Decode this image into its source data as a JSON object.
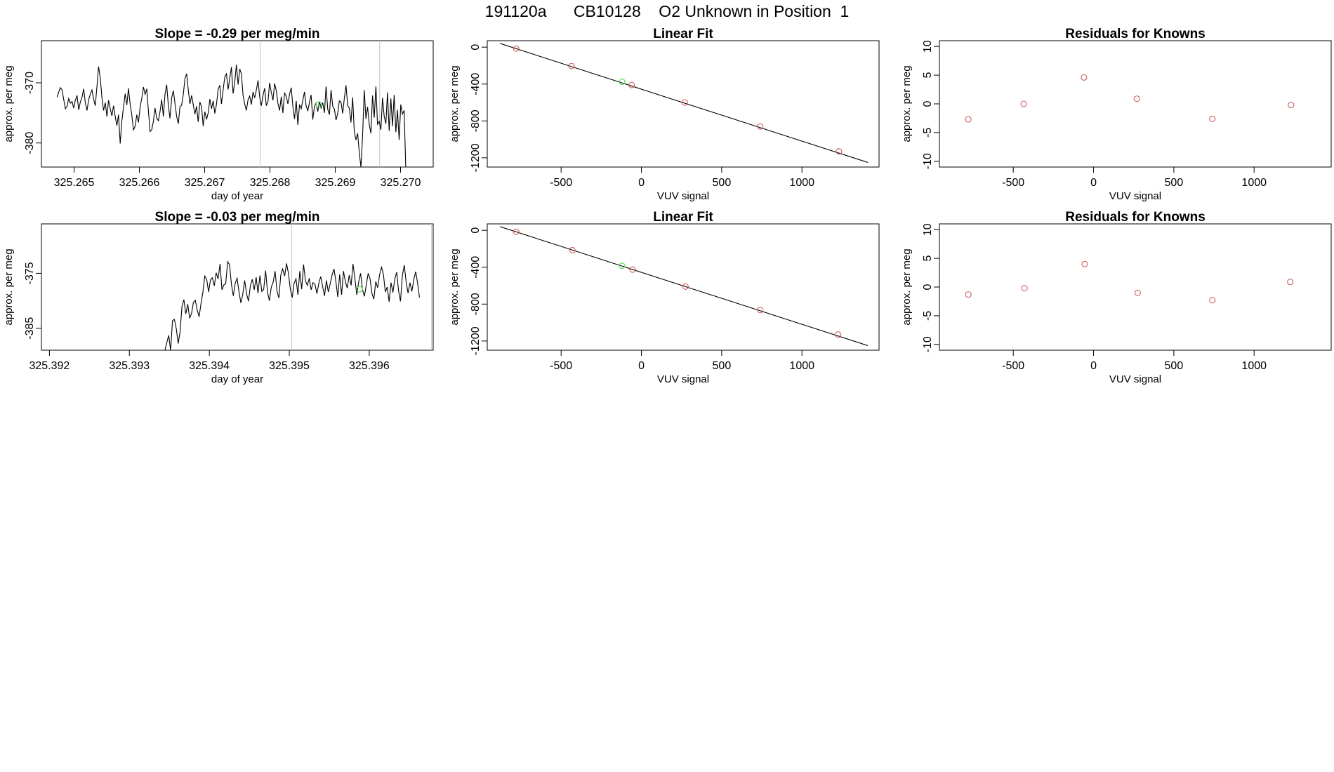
{
  "page_title": "191120a      CB10128    O2 Unknown in Position  1",
  "colors": {
    "series": "#000000",
    "known": "#cd5c5c",
    "unknown": "#5bdc5b",
    "marker": "#cccccc",
    "fit": "#000000"
  },
  "chart_data": [
    {
      "type": "line",
      "title": "Slope =  -0.29  per meg/min",
      "xlabel": "day of year",
      "ylabel": "approx. per meg",
      "xlim": [
        325.2645,
        325.2705
      ],
      "ylim": [
        -384,
        -363
      ],
      "xticks": [
        "325.265",
        "325.266",
        "325.267",
        "325.268",
        "325.269",
        "325.270"
      ],
      "yticks": [
        "-370",
        "-380"
      ],
      "ytick_values": [
        -370,
        -380
      ],
      "xtick_values": [
        325.265,
        325.266,
        325.267,
        325.268,
        325.269,
        325.27
      ],
      "vlines": [
        325.26785,
        325.26968
      ],
      "unknown_point": {
        "x": 325.26875,
        "y": -373.6
      },
      "series": [
        {
          "values": [
            -372.4,
            -371.5,
            -370.8,
            -371.2,
            -372.8,
            -374.3,
            -373.9,
            -372.6,
            -373.4,
            -373.1,
            -374.2,
            -372.9,
            -372.1,
            -374.5,
            -373.2,
            -372.4,
            -371.0,
            -373.3,
            -374.6,
            -372.8,
            -371.9,
            -371.2,
            -372.7,
            -373.8,
            -370.6,
            -367.3,
            -369.2,
            -372.5,
            -374.6,
            -373.3,
            -375.6,
            -372.9,
            -374.3,
            -375.5,
            -373.8,
            -375.6,
            -377.1,
            -375.3,
            -380.1,
            -376.4,
            -374.0,
            -371.8,
            -373.7,
            -370.9,
            -373.6,
            -375.3,
            -377.9,
            -377.2,
            -375.3,
            -376.6,
            -374.0,
            -372.6,
            -370.7,
            -371.9,
            -371.0,
            -374.7,
            -378.1,
            -377.8,
            -376.4,
            -374.2,
            -375.9,
            -376.3,
            -374.8,
            -372.8,
            -375.6,
            -371.9,
            -370.3,
            -373.8,
            -375.9,
            -372.5,
            -371.3,
            -373.4,
            -375.6,
            -376.8,
            -374.0,
            -373.7,
            -372.0,
            -369.3,
            -368.5,
            -371.1,
            -373.5,
            -372.1,
            -373.6,
            -375.2,
            -373.9,
            -376.5,
            -373.2,
            -374.0,
            -377.2,
            -374.8,
            -376.1,
            -375.0,
            -372.7,
            -374.3,
            -373.0,
            -375.1,
            -373.6,
            -371.1,
            -370.4,
            -373.5,
            -371.2,
            -369.0,
            -368.5,
            -371.1,
            -369.2,
            -367.4,
            -371.8,
            -369.8,
            -367.0,
            -370.3,
            -367.7,
            -368.5,
            -372.1,
            -373.5,
            -374.6,
            -372.8,
            -372.2,
            -373.6,
            -371.5,
            -372.5,
            -371.2,
            -369.6,
            -372.3,
            -373.8,
            -372.1,
            -370.9,
            -373.8,
            -373.1,
            -370.0,
            -371.6,
            -372.9,
            -370.1,
            -371.3,
            -373.4,
            -374.6,
            -372.3,
            -375.0,
            -371.7,
            -372.2,
            -373.5,
            -371.9,
            -370.8,
            -373.9,
            -376.0,
            -373.0,
            -377.0,
            -373.6,
            -374.3,
            -372.9,
            -371.5,
            -373.8,
            -374.7,
            -373.2,
            -372.0,
            -376.1,
            -373.9,
            -373.4,
            -374.8,
            -373.1,
            -374.2,
            -373.3,
            -375.0,
            -370.6,
            -374.4,
            -375.3,
            -371.2,
            -373.9,
            -374.4,
            -376.2,
            -375.1,
            -373.0,
            -373.2,
            -375.1,
            -372.6,
            -370.4,
            -373.8,
            -374.2,
            -376.6,
            -372.4,
            -378.1,
            -379.5,
            -378.4,
            -381.6,
            -384.0,
            -378.6,
            -371.2,
            -376.0,
            -374.0,
            -376.9,
            -378.4,
            -372.1,
            -375.8,
            -370.6,
            -376.9,
            -376.4,
            -377.8,
            -372.5,
            -375.6,
            -376.8,
            -371.6,
            -378.0,
            -372.6,
            -377.2,
            -372.0,
            -378.2,
            -374.5,
            -379.5,
            -373.6,
            -375.2,
            -374.6,
            -384.0
          ]
        }
      ]
    },
    {
      "type": "scatter",
      "title": "Linear Fit",
      "xlabel": "VUV signal",
      "ylabel": "approx. per meg",
      "xlim": [
        -960,
        1480
      ],
      "ylim": [
        -1300,
        70
      ],
      "xticks": [
        "-500",
        "0",
        "500",
        "1000"
      ],
      "xtick_values": [
        -500,
        0,
        500,
        1000
      ],
      "yticks": [
        "0",
        "-400",
        "-800",
        "-1200"
      ],
      "ytick_values": [
        0,
        -400,
        -800,
        -1200
      ],
      "fit_line": {
        "x": [
          -880,
          1410
        ],
        "y": [
          40,
          -1250
        ]
      },
      "knowns": {
        "x": [
          -780,
          -435,
          -60,
          270,
          740,
          1230
        ],
        "y": [
          -15,
          -205,
          -410,
          -600,
          -860,
          -1130
        ]
      },
      "unknown": {
        "x": -120,
        "y": -375
      }
    },
    {
      "type": "scatter",
      "title": "Residuals for Knowns",
      "xlabel": "VUV signal",
      "ylabel": "approx. per meg",
      "xlim": [
        -960,
        1480
      ],
      "ylim": [
        -11,
        11
      ],
      "xticks": [
        "-500",
        "0",
        "500",
        "1000"
      ],
      "xtick_values": [
        -500,
        0,
        500,
        1000
      ],
      "yticks": [
        "10",
        "5",
        "0",
        "-5",
        "-10"
      ],
      "ytick_values": [
        10,
        5,
        0,
        -5,
        -10
      ],
      "knowns": {
        "x": [
          -780,
          -435,
          -60,
          270,
          740,
          1230
        ],
        "y": [
          -2.7,
          0,
          4.6,
          0.9,
          -2.6,
          -0.2
        ]
      }
    },
    {
      "type": "line",
      "title": "Slope =  -0.03  per meg/min",
      "xlabel": "day of year",
      "ylabel": "approx. per meg",
      "xlim": [
        325.3919,
        325.3968
      ],
      "ylim": [
        -389,
        -366
      ],
      "xticks": [
        "325.392",
        "325.393",
        "325.394",
        "325.395",
        "325.396"
      ],
      "xtick_values": [
        325.392,
        325.393,
        325.394,
        325.395,
        325.396
      ],
      "yticks": [
        "-375",
        "-385"
      ],
      "ytick_values": [
        -375,
        -385
      ],
      "vlines": [
        325.39503,
        325.39678
      ],
      "unknown_point": {
        "x": 325.39588,
        "y": -377.9
      },
      "series": [
        {
          "values": [
            -389.0,
            -389.0,
            -389.0,
            -389.0,
            -389.0,
            -389.0,
            -389.0,
            -389.0,
            -389.0,
            -389.0,
            -389.0,
            -389.0,
            -389.0,
            -389.0,
            -389.0,
            -389.0,
            -389.0,
            -389.0,
            -389.0,
            -389.0,
            -389.0,
            -389.0,
            -389.0,
            -389.0,
            -389.0,
            -389.0,
            -389.0,
            -389.0,
            -389.0,
            -389.0,
            -389.0,
            -389.0,
            -389.0,
            -389.0,
            -389.0,
            -389.0,
            -389.0,
            -389.0,
            -389.0,
            -389.0,
            -389.0,
            -389.0,
            -389.0,
            -389.0,
            -389.0,
            -389.0,
            -389.0,
            -389.0,
            -389.0,
            -389.0,
            -389.0,
            -389.0,
            -389.0,
            -389.0,
            -389.0,
            -389.0,
            -389.0,
            -389.0,
            -389.0,
            -389.0,
            -389.0,
            -389.0,
            -389.0,
            -389.0,
            -389.0,
            -389.0,
            -387.6,
            -386.3,
            -389.0,
            -383.6,
            -383.4,
            -385.1,
            -387.8,
            -385.6,
            -381.0,
            -379.8,
            -382.4,
            -380.6,
            -383.2,
            -382.3,
            -380.3,
            -379.9,
            -381.7,
            -382.9,
            -380.5,
            -378.4,
            -375.5,
            -376.1,
            -378.4,
            -376.2,
            -375.8,
            -377.3,
            -374.9,
            -376.0,
            -373.3,
            -378.0,
            -377.1,
            -376.9,
            -372.9,
            -373.4,
            -377.0,
            -379.1,
            -376.8,
            -375.9,
            -378.4,
            -380.4,
            -378.8,
            -376.3,
            -378.7,
            -380.1,
            -377.3,
            -376.1,
            -378.0,
            -375.7,
            -378.6,
            -375.4,
            -378.3,
            -377.9,
            -374.5,
            -378.4,
            -380.0,
            -377.5,
            -376.6,
            -374.6,
            -378.2,
            -379.5,
            -375.3,
            -374.2,
            -375.5,
            -373.2,
            -375.0,
            -377.9,
            -379.4,
            -376.8,
            -376.0,
            -378.9,
            -374.6,
            -377.9,
            -373.4,
            -376.4,
            -377.2,
            -375.9,
            -378.0,
            -376.7,
            -377.0,
            -378.7,
            -376.8,
            -375.6,
            -377.4,
            -379.1,
            -376.3,
            -378.4,
            -376.9,
            -375.3,
            -374.2,
            -376.5,
            -379.3,
            -375.2,
            -378.9,
            -374.6,
            -376.5,
            -377.7,
            -375.3,
            -377.2,
            -373.3,
            -376.0,
            -378.9,
            -376.5,
            -375.0,
            -378.0,
            -379.2,
            -377.1,
            -375.0,
            -376.0,
            -378.7,
            -379.7,
            -376.5,
            -377.6,
            -375.3,
            -373.9,
            -375.2,
            -378.4,
            -377.5,
            -380.2,
            -376.7,
            -378.5,
            -376.0,
            -374.8,
            -378.2,
            -380.1,
            -375.4,
            -373.5,
            -376.6,
            -378.6,
            -376.7,
            -378.3,
            -376.1,
            -374.7,
            -376.8,
            -379.4
          ]
        }
      ]
    },
    {
      "type": "scatter",
      "title": "Linear Fit",
      "xlabel": "VUV signal",
      "ylabel": "approx. per meg",
      "xlim": [
        -960,
        1480
      ],
      "ylim": [
        -1300,
        70
      ],
      "xticks": [
        "-500",
        "0",
        "500",
        "1000"
      ],
      "xtick_values": [
        -500,
        0,
        500,
        1000
      ],
      "yticks": [
        "0",
        "-400",
        "-800",
        "-1200"
      ],
      "ytick_values": [
        0,
        -400,
        -800,
        -1200
      ],
      "fit_line": {
        "x": [
          -880,
          1410
        ],
        "y": [
          40,
          -1250
        ]
      },
      "knowns": {
        "x": [
          -780,
          -430,
          -55,
          275,
          740,
          1225
        ],
        "y": [
          -15,
          -215,
          -425,
          -610,
          -865,
          -1130
        ]
      },
      "unknown": {
        "x": -120,
        "y": -385
      }
    },
    {
      "type": "scatter",
      "title": "Residuals for Knowns",
      "xlabel": "VUV signal",
      "ylabel": "approx. per meg",
      "xlim": [
        -960,
        1480
      ],
      "ylim": [
        -11,
        11
      ],
      "xticks": [
        "-500",
        "0",
        "500",
        "1000"
      ],
      "xtick_values": [
        -500,
        0,
        500,
        1000
      ],
      "yticks": [
        "10",
        "5",
        "0",
        "-5",
        "-10"
      ],
      "ytick_values": [
        10,
        5,
        0,
        -5,
        -10
      ],
      "knowns": {
        "x": [
          -780,
          -430,
          -55,
          275,
          740,
          1225
        ],
        "y": [
          -1.3,
          -0.2,
          4.0,
          -1.0,
          -2.3,
          0.9
        ]
      }
    }
  ]
}
